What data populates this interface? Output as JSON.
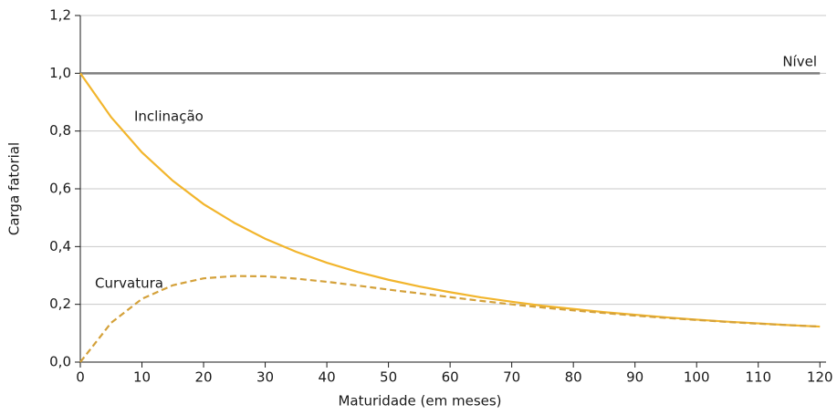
{
  "chart_data": {
    "type": "line",
    "xlabel": "Maturidade (em meses)",
    "ylabel": "Carga fatorial",
    "x": [
      0,
      5,
      10,
      15,
      20,
      25,
      30,
      35,
      40,
      45,
      50,
      55,
      60,
      65,
      70,
      75,
      80,
      85,
      90,
      95,
      100,
      105,
      110,
      115,
      120
    ],
    "series": [
      {
        "name": "Nível",
        "color": "#7f7f7f",
        "line_style": "solid",
        "values": [
          1,
          1,
          1,
          1,
          1,
          1,
          1,
          1,
          1,
          1,
          1,
          1,
          1,
          1,
          1,
          1,
          1,
          1,
          1,
          1,
          1,
          1,
          1,
          1,
          1
        ]
      },
      {
        "name": "Inclinação",
        "color": "#f2b52c",
        "line_style": "solid",
        "values": [
          1,
          0.848,
          0.726,
          0.628,
          0.547,
          0.482,
          0.427,
          0.382,
          0.344,
          0.312,
          0.285,
          0.262,
          0.242,
          0.224,
          0.209,
          0.195,
          0.184,
          0.173,
          0.164,
          0.155,
          0.147,
          0.14,
          0.134,
          0.128,
          0.123
        ]
      },
      {
        "name": "Curvatura",
        "color": "#d4a13a",
        "line_style": "dashed",
        "values": [
          0,
          0.136,
          0.219,
          0.266,
          0.29,
          0.298,
          0.297,
          0.289,
          0.278,
          0.265,
          0.251,
          0.238,
          0.225,
          0.212,
          0.2,
          0.189,
          0.179,
          0.17,
          0.161,
          0.153,
          0.146,
          0.139,
          0.133,
          0.128,
          0.123
        ]
      }
    ],
    "xlim": [
      0,
      121
    ],
    "xticks": [
      0,
      10,
      20,
      30,
      40,
      50,
      60,
      70,
      80,
      90,
      100,
      110,
      120
    ],
    "ylim": [
      0,
      1.2
    ],
    "yticks": [
      {
        "value": 0,
        "label": "0,0"
      },
      {
        "value": 0.2,
        "label": "0,2"
      },
      {
        "value": 0.4,
        "label": "0,4"
      },
      {
        "value": 0.6,
        "label": "0,6"
      },
      {
        "value": 0.8,
        "label": "0,8"
      },
      {
        "value": 1.0,
        "label": "1,0"
      },
      {
        "value": 1.2,
        "label": "1,2"
      }
    ],
    "grid": true
  }
}
